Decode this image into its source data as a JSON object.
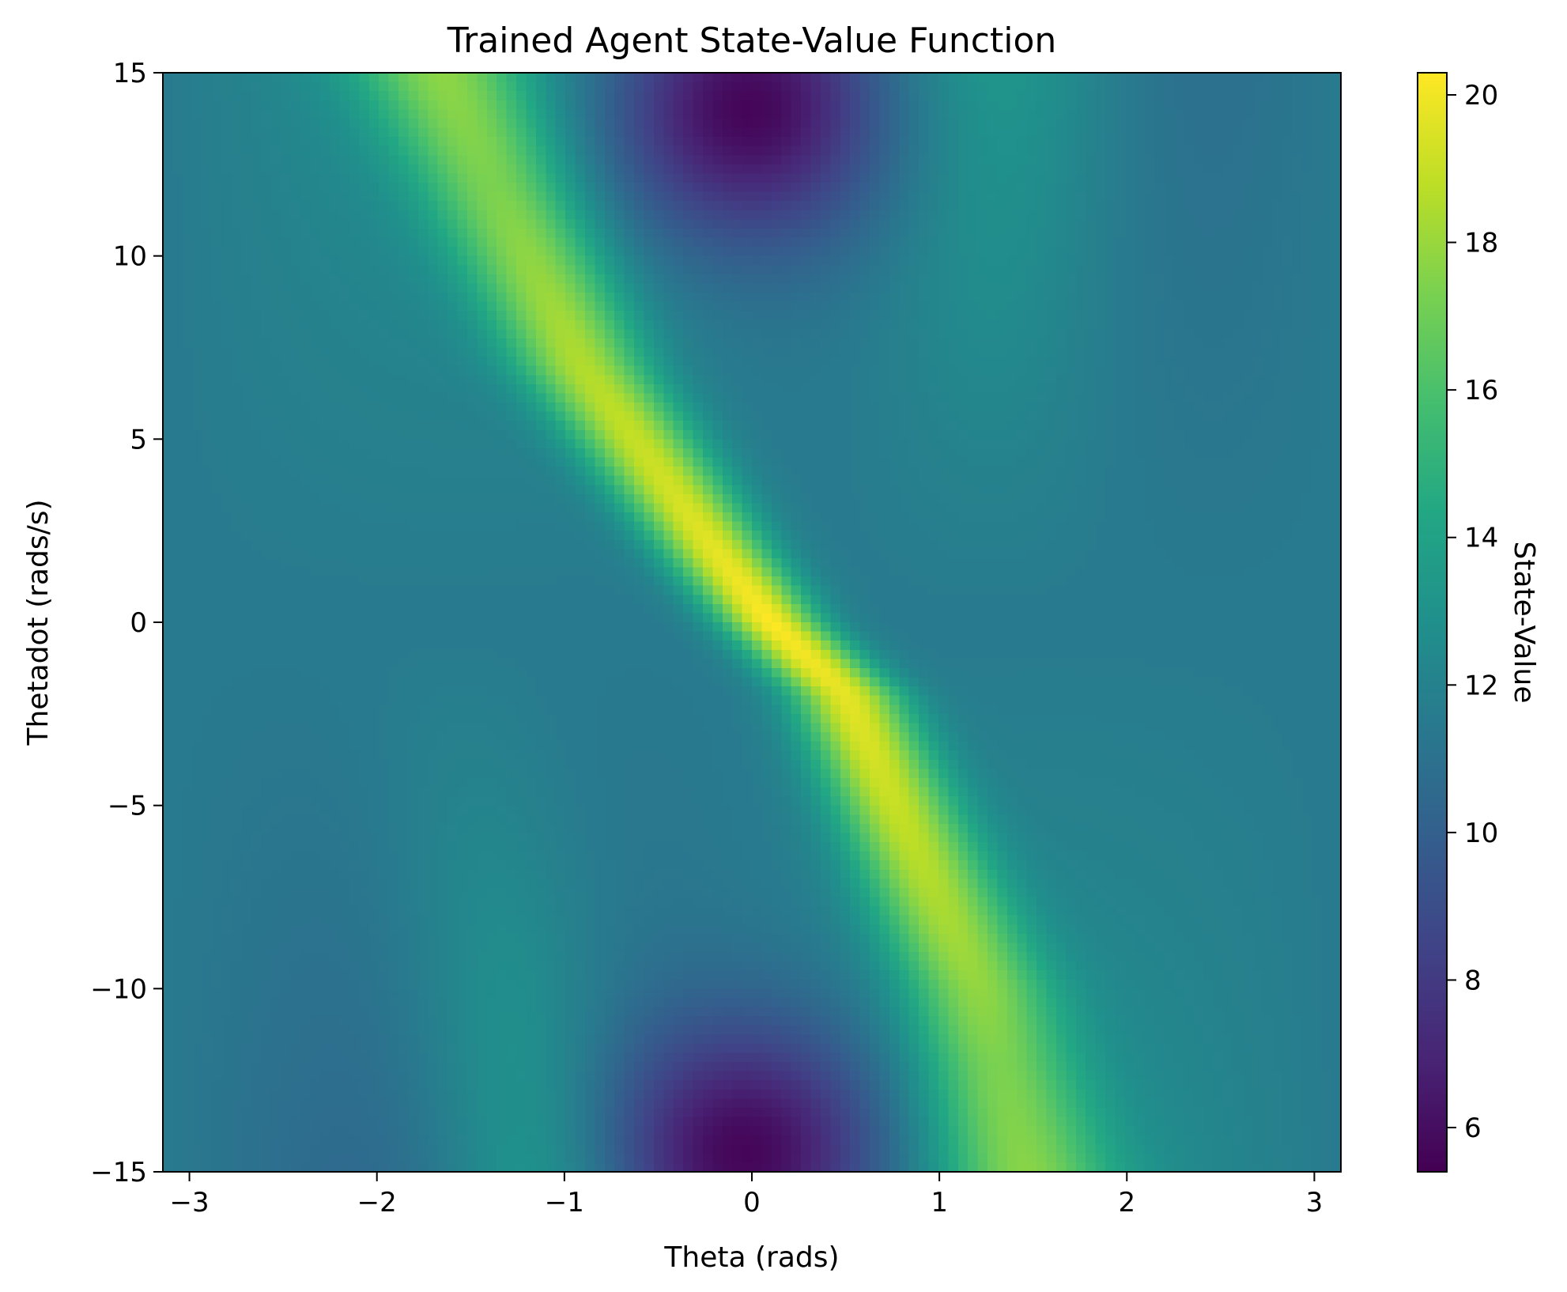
{
  "chart_data": {
    "type": "heatmap",
    "title": "Trained Agent State-Value Function",
    "xlabel": "Theta (rads)",
    "ylabel": "Thetadot (rads/s)",
    "xlim": [
      -3.1416,
      3.1416
    ],
    "ylim": [
      -15,
      15
    ],
    "xticks": [
      -3,
      -2,
      -1,
      0,
      1,
      2,
      3
    ],
    "xtick_labels": [
      "−3",
      "−2",
      "−1",
      "0",
      "1",
      "2",
      "3"
    ],
    "yticks": [
      -15,
      -10,
      -5,
      0,
      5,
      10,
      15
    ],
    "ytick_labels": [
      "−15",
      "−10",
      "−5",
      "0",
      "5",
      "10",
      "15"
    ],
    "colormap": "viridis",
    "colorbar": {
      "label": "State-Value",
      "range": [
        5.4,
        20.3
      ],
      "ticks": [
        6,
        8,
        10,
        12,
        14,
        16,
        18,
        20
      ],
      "tick_labels": [
        "6",
        "8",
        "10",
        "12",
        "14",
        "16",
        "18",
        "20"
      ]
    },
    "grid_resolution": [
      120,
      120
    ],
    "features": {
      "ridge": {
        "description_points": [
          [
            -1.65,
            15
          ],
          [
            -0.9,
            7
          ],
          [
            -0.2,
            2
          ],
          [
            0.1,
            0
          ],
          [
            0.5,
            -2
          ],
          [
            1.2,
            -10
          ],
          [
            1.45,
            -15
          ]
        ],
        "peak_value": 20.3
      },
      "low_regions": [
        {
          "theta": -0.05,
          "thetadot": 14.0,
          "value": 5.5
        },
        {
          "theta": 0.0,
          "thetadot": -14.5,
          "value": 5.6
        }
      ],
      "background_value": 11.5
    }
  }
}
